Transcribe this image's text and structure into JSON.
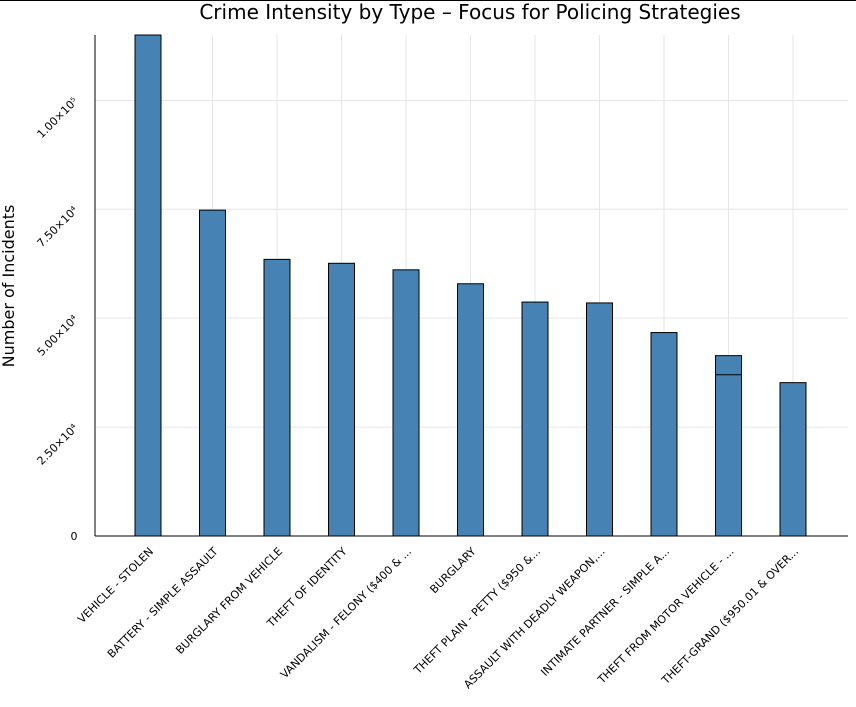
{
  "chart_data": {
    "type": "bar",
    "title": "Crime Intensity by Type – Focus for Policing Strategies",
    "ylabel": "Number of Incidents",
    "xlabel": "",
    "ylim": [
      0,
      115000
    ],
    "grid": true,
    "legend": "none",
    "bar_color": "#4682b4",
    "yticks": [
      {
        "value": 0,
        "label": "0"
      },
      {
        "value": 25000,
        "label": "2.50×10⁴"
      },
      {
        "value": 50000,
        "label": "5.00×10⁴"
      },
      {
        "value": 75000,
        "label": "7.50×10⁴"
      },
      {
        "value": 100000,
        "label": "1.00×10⁵"
      }
    ],
    "categories": [
      "VEHICLE - STOLEN",
      "BATTERY - SIMPLE ASSAULT",
      "BURGLARY FROM VEHICLE",
      "THEFT OF IDENTITY",
      "VANDALISM - FELONY ($400 & ...",
      "BURGLARY",
      "THEFT PLAIN - PETTY ($950 &...",
      "ASSAULT WITH DEADLY WEAPON,...",
      "INTIMATE PARTNER - SIMPLE A...",
      "THEFT FROM MOTOR VEHICLE - ...",
      "THEFT-GRAND ($950.01 & OVER..."
    ],
    "values": [
      115500,
      74800,
      63500,
      62600,
      61100,
      57900,
      53700,
      53500,
      46700,
      41400,
      35200
    ],
    "stacked_inner": {
      "index": 9,
      "value": 37000
    }
  }
}
